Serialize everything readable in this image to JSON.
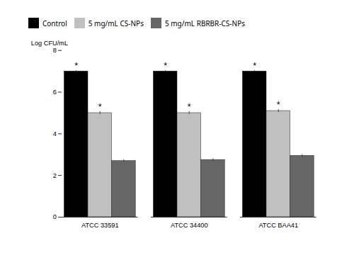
{
  "chart_data": {
    "type": "bar",
    "categories": [
      "ATCC 33591",
      "ATCC 34400",
      "ATCC BAA41"
    ],
    "series": [
      {
        "name": "Control",
        "color": "#000000",
        "values": [
          7.0,
          7.0,
          7.0
        ],
        "errors": [
          0.04,
          0.04,
          0.04
        ],
        "annotations": [
          "*",
          "*",
          "*"
        ]
      },
      {
        "name": "5 mg/mL CS-NPs",
        "color": "#c0c0c0",
        "values": [
          5.0,
          5.0,
          5.1
        ],
        "errors": [
          0.07,
          0.07,
          0.07
        ],
        "annotations": [
          "*",
          "*",
          "*"
        ]
      },
      {
        "name": "5 mg/mL RBRBR-CS-NPs",
        "color": "#666666",
        "values": [
          2.7,
          2.75,
          2.95
        ],
        "errors": [
          0.06,
          0.06,
          0.06
        ]
      }
    ],
    "ylabel": "Log CFU/mL",
    "ylim": [
      0,
      8
    ],
    "yticks": [
      0,
      2,
      4,
      6,
      8
    ],
    "legend": "top"
  }
}
